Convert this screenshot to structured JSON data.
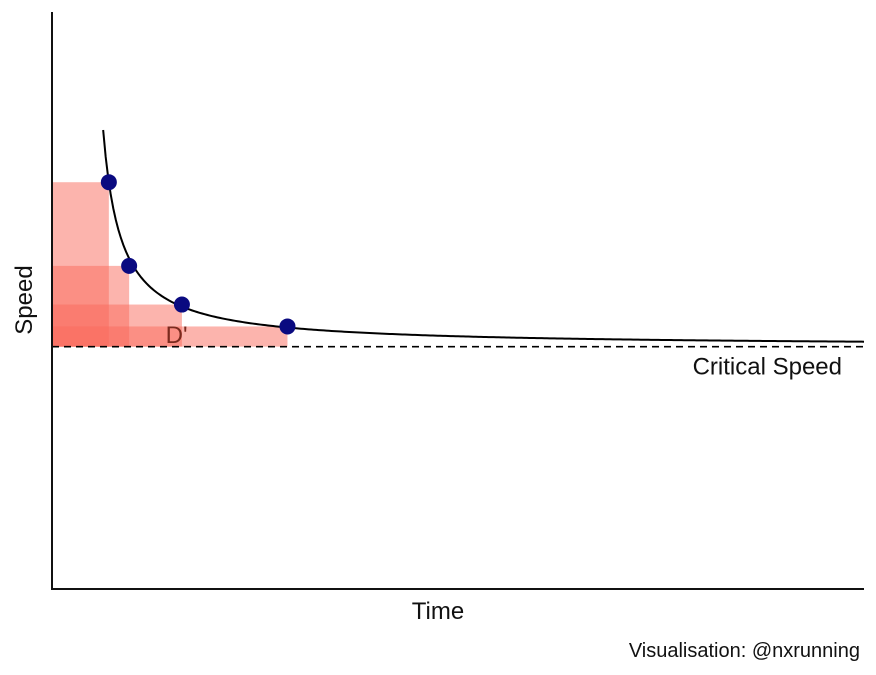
{
  "chart_data": {
    "type": "line",
    "title": "",
    "xlabel": "Time",
    "ylabel": "Speed",
    "caption": "Visualisation: @nxrunning",
    "axis_ticks": false,
    "grid": false,
    "x_range": [
      0,
      100
    ],
    "y_range": [
      0,
      10
    ],
    "critical_speed": {
      "value": 4.2,
      "label": "Critical Speed",
      "line_style": "dashed",
      "color": "#000000"
    },
    "curve": {
      "name": "",
      "x_start": 6.3,
      "x_end": 100,
      "color": "#000000",
      "comment_form": "y = critical_speed + k / (x - x0)",
      "k": 8.26,
      "x0": 4.1
    },
    "efforts": [
      {
        "x": 7,
        "y": 7.05
      },
      {
        "x": 9.5,
        "y": 5.6
      },
      {
        "x": 16,
        "y": 4.93
      },
      {
        "x": 29,
        "y": 4.55
      }
    ],
    "point_color": "#0a0a80",
    "area_color": "#fa6a5c",
    "area_label": "D'",
    "area_label_color": "#7a2a1e"
  }
}
